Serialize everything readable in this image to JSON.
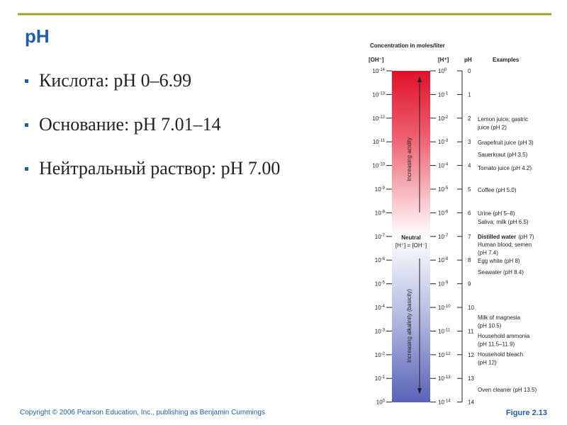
{
  "slide": {
    "title": "pH",
    "bullets": [
      "Кислота:  pH 0–6.99",
      "Основание:  pH 7.01–14",
      "Нейтральный раствор:  pH 7.00"
    ],
    "figure": {
      "header": "Concentration in moles/liter",
      "columns": {
        "oh": "[OH⁻]",
        "h": "[H⁺]",
        "ph": "pH",
        "examples": "Examples"
      },
      "rows": [
        {
          "oh": {
            "base": "10",
            "exp": "-14"
          },
          "h": {
            "base": "10",
            "exp": "0"
          },
          "ph": 0
        },
        {
          "oh": {
            "base": "10",
            "exp": "-13"
          },
          "h": {
            "base": "10",
            "exp": "-1"
          },
          "ph": 1
        },
        {
          "oh": {
            "base": "10",
            "exp": "-12"
          },
          "h": {
            "base": "10",
            "exp": "-2"
          },
          "ph": 2
        },
        {
          "oh": {
            "base": "10",
            "exp": "-11"
          },
          "h": {
            "base": "10",
            "exp": "-3"
          },
          "ph": 3
        },
        {
          "oh": {
            "base": "10",
            "exp": "-10"
          },
          "h": {
            "base": "10",
            "exp": "-4"
          },
          "ph": 4
        },
        {
          "oh": {
            "base": "10",
            "exp": "-9"
          },
          "h": {
            "base": "10",
            "exp": "-5"
          },
          "ph": 5
        },
        {
          "oh": {
            "base": "10",
            "exp": "-8"
          },
          "h": {
            "base": "10",
            "exp": "-6"
          },
          "ph": 6
        },
        {
          "oh": {
            "base": "10",
            "exp": "-7"
          },
          "h": {
            "base": "10",
            "exp": "-7"
          },
          "ph": 7
        },
        {
          "oh": {
            "base": "10",
            "exp": "-6"
          },
          "h": {
            "base": "10",
            "exp": "-8"
          },
          "ph": 8
        },
        {
          "oh": {
            "base": "10",
            "exp": "-5"
          },
          "h": {
            "base": "10",
            "exp": "-9"
          },
          "ph": 9
        },
        {
          "oh": {
            "base": "10",
            "exp": "-4"
          },
          "h": {
            "base": "10",
            "exp": "-10"
          },
          "ph": 10
        },
        {
          "oh": {
            "base": "10",
            "exp": "-3"
          },
          "h": {
            "base": "10",
            "exp": "-11"
          },
          "ph": 11
        },
        {
          "oh": {
            "base": "10",
            "exp": "-2"
          },
          "h": {
            "base": "10",
            "exp": "-12"
          },
          "ph": 12
        },
        {
          "oh": {
            "base": "10",
            "exp": "-1"
          },
          "h": {
            "base": "10",
            "exp": "-13"
          },
          "ph": 13
        },
        {
          "oh": {
            "base": "10",
            "exp": "0"
          },
          "h": {
            "base": "10",
            "exp": "-14"
          },
          "ph": 14
        }
      ],
      "examples": [
        {
          "lines": [
            "Lemon juice; gastric",
            "juice (pH 2)"
          ]
        },
        {
          "lines": [
            "Grapefruit juice (pH 3)"
          ]
        },
        {
          "lines": [
            "Sauerkraut (pH 3.5)"
          ]
        },
        {
          "lines": [
            "Tomato juice (pH 4.2)"
          ]
        },
        {
          "lines": [
            "Coffee (pH 5.0)"
          ]
        },
        {
          "lines": [
            "Urine (pH 5–8)"
          ]
        },
        {
          "lines": [
            "Saliva; milk (pH 6.5)"
          ]
        },
        {
          "strong": "Distilled water",
          "lines": [
            "(pH 7)"
          ]
        },
        {
          "lines": [
            "Human blood; semen",
            "(pH 7.4)"
          ]
        },
        {
          "lines": [
            "Egg white (pH 8)"
          ]
        },
        {
          "lines": [
            "Seawater (pH 8.4)"
          ]
        },
        {
          "lines": [
            "Milk of magnesia",
            "(pH 10.5)"
          ]
        },
        {
          "lines": [
            "Household ammonia",
            "(pH 11.5–11.9)"
          ]
        },
        {
          "lines": [
            "Household bleach",
            "(pH 12)"
          ]
        },
        {
          "lines": [
            "Oven cleaner (pH 13.5)"
          ]
        }
      ],
      "acid_label": "Increasing acidity",
      "neutral": "Neutral",
      "neutral_eq": "[H⁺] = [OH⁻]",
      "base_label": "Increasing alkalinity (basicity)"
    },
    "copyright": "Copyright © 2006 Pearson Education, Inc., publishing as Benjamin Cummings",
    "figure_label": "Figure 2.13"
  }
}
